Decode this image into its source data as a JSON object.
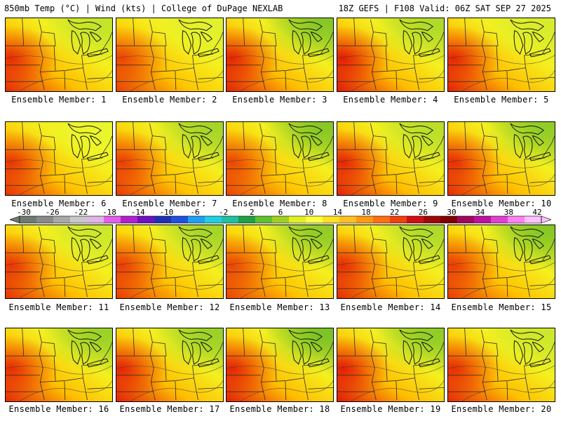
{
  "header": {
    "left": "850mb Temp (°C) | Wind (kts) | College of DuPage NEXLAB",
    "right": "18Z GEFS | F108 Valid: 06Z SAT SEP 27 2025"
  },
  "members": [
    {
      "label": "Ensemble Member: 1",
      "warm_west": 0.85,
      "cool_ne": 0.3
    },
    {
      "label": "Ensemble Member: 2",
      "warm_west": 0.7,
      "cool_ne": 0.15
    },
    {
      "label": "Ensemble Member: 3",
      "warm_west": 0.9,
      "cool_ne": 0.6
    },
    {
      "label": "Ensemble Member: 4",
      "warm_west": 0.95,
      "cool_ne": 0.4
    },
    {
      "label": "Ensemble Member: 5",
      "warm_west": 0.9,
      "cool_ne": 0.2
    },
    {
      "label": "Ensemble Member: 6",
      "warm_west": 0.8,
      "cool_ne": 0.1
    },
    {
      "label": "Ensemble Member: 7",
      "warm_west": 0.75,
      "cool_ne": 0.45
    },
    {
      "label": "Ensemble Member: 8",
      "warm_west": 0.7,
      "cool_ne": 0.6
    },
    {
      "label": "Ensemble Member: 9",
      "warm_west": 0.9,
      "cool_ne": 0.35
    },
    {
      "label": "Ensemble Member: 10",
      "warm_west": 0.85,
      "cool_ne": 0.55
    },
    {
      "label": "Ensemble Member: 11",
      "warm_west": 0.8,
      "cool_ne": 0.25
    },
    {
      "label": "Ensemble Member: 12",
      "warm_west": 0.75,
      "cool_ne": 0.45
    },
    {
      "label": "Ensemble Member: 13",
      "warm_west": 0.7,
      "cool_ne": 0.55
    },
    {
      "label": "Ensemble Member: 14",
      "warm_west": 0.85,
      "cool_ne": 0.4
    },
    {
      "label": "Ensemble Member: 15",
      "warm_west": 0.75,
      "cool_ne": 0.6
    },
    {
      "label": "Ensemble Member: 16",
      "warm_west": 0.85,
      "cool_ne": 0.5
    },
    {
      "label": "Ensemble Member: 17",
      "warm_west": 0.9,
      "cool_ne": 0.5
    },
    {
      "label": "Ensemble Member: 18",
      "warm_west": 0.9,
      "cool_ne": 0.65
    },
    {
      "label": "Ensemble Member: 19",
      "warm_west": 0.95,
      "cool_ne": 0.55
    },
    {
      "label": "Ensemble Member: 20",
      "warm_west": 0.85,
      "cool_ne": 0.25
    }
  ],
  "colorbar": {
    "unit": "°C",
    "tick_labels": [
      "-30",
      "-26",
      "-22",
      "-18",
      "-14",
      "-10",
      "-6",
      "-2",
      "2",
      "6",
      "10",
      "14",
      "18",
      "22",
      "26",
      "30",
      "34",
      "38",
      "42"
    ],
    "colors": [
      "#6e7b6e",
      "#8a8a8a",
      "#a8a8a8",
      "#c8c8c8",
      "#e0b4e6",
      "#e060e8",
      "#b020d0",
      "#7010c0",
      "#2030b0",
      "#2050e0",
      "#20a0f0",
      "#20d0e0",
      "#20c0a0",
      "#20a040",
      "#60c030",
      "#a0d020",
      "#e0f020",
      "#ffff40",
      "#ffe020",
      "#ffc020",
      "#ff9a10",
      "#ff7010",
      "#f04010",
      "#d01010",
      "#a00808",
      "#800000",
      "#a00860",
      "#c010a0",
      "#e040d0",
      "#ff80f0",
      "#ffc0ff"
    ]
  }
}
